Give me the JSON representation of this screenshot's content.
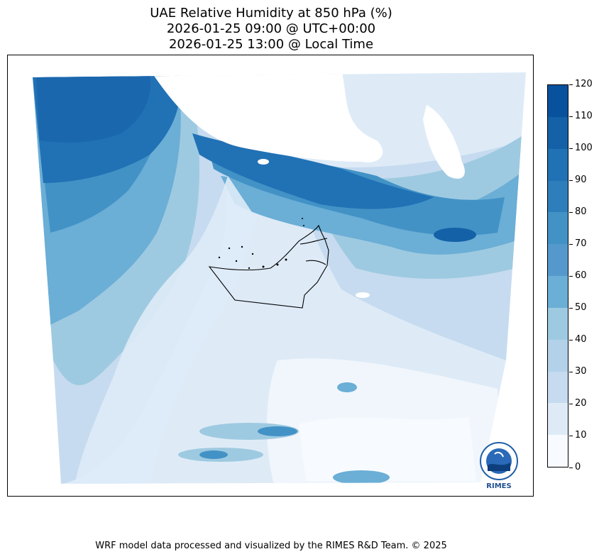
{
  "title_lines": [
    "UAE Relative Humidity at 850 hPa (%)",
    "2026-01-25 09:00 @ UTC+00:00",
    "2026-01-25 13:00 @ Local Time"
  ],
  "colorbar": {
    "ticks": [
      "0",
      "10",
      "20",
      "30",
      "40",
      "50",
      "60",
      "70",
      "80",
      "90",
      "100",
      "110",
      "120"
    ],
    "levels": [
      0,
      10,
      20,
      30,
      40,
      50,
      60,
      70,
      80,
      90,
      100,
      110,
      120
    ],
    "colors": [
      "#f7fbff",
      "#deebf7",
      "#c6dbef",
      "#b3d2e9",
      "#9ecae1",
      "#6baed6",
      "#5599cc",
      "#4292c6",
      "#2f7ebc",
      "#2171b5",
      "#1461a8",
      "#08519c"
    ]
  },
  "map": {
    "variable": "Relative Humidity",
    "units": "%",
    "region": "UAE",
    "pressure_level": "850 hPa"
  },
  "logo": {
    "text": "RIMES"
  },
  "footer": "WRF model data processed and visualized by the RIMES R&D Team. © 2025"
}
